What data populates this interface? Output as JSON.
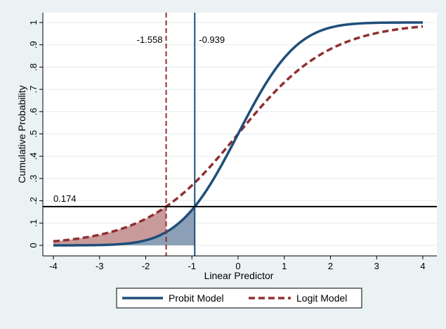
{
  "chart_data": {
    "type": "line",
    "xlabel": "Linear Predictor",
    "ylabel": "Cumulative Probability",
    "xlim": [
      -4,
      4
    ],
    "ylim": [
      0,
      1
    ],
    "x_ticks": [
      -4,
      -3,
      -2,
      -1,
      0,
      1,
      2,
      3,
      4
    ],
    "x_tick_labels": [
      "-4",
      "-3",
      "-2",
      "-1",
      "0",
      "1",
      "2",
      "3",
      "4"
    ],
    "y_ticks": [
      0,
      0.1,
      0.2,
      0.3,
      0.4,
      0.5,
      0.6,
      0.7,
      0.8,
      0.9,
      1
    ],
    "y_tick_labels": [
      "0",
      ".1",
      ".2",
      ".3",
      ".4",
      ".5",
      ".6",
      ".7",
      ".8",
      ".9",
      "1"
    ],
    "grid": "horizontal",
    "legend_position": "bottom",
    "series": [
      {
        "name": "Probit Model",
        "function": "normal-cdf",
        "style": "solid",
        "color": "#1f4e79"
      },
      {
        "name": "Logit Model",
        "function": "logistic-cdf",
        "style": "dashed",
        "color": "#903030"
      }
    ],
    "reference_lines": {
      "vertical": [
        {
          "x": -1.558,
          "label": "-1.558",
          "style": "dashed",
          "color": "#903030"
        },
        {
          "x": -0.939,
          "label": "-0.939",
          "style": "solid",
          "color": "#1f4e79"
        }
      ],
      "horizontal": [
        {
          "y": 0.174,
          "label": "0.174",
          "color": "#000000"
        }
      ]
    },
    "shaded_regions": [
      {
        "series": "Logit Model",
        "from": -4,
        "to": -1.558,
        "color": "#c99a9a"
      },
      {
        "series": "Probit Model",
        "from": -4,
        "to": -0.939,
        "color": "#8ba0b6"
      }
    ]
  }
}
